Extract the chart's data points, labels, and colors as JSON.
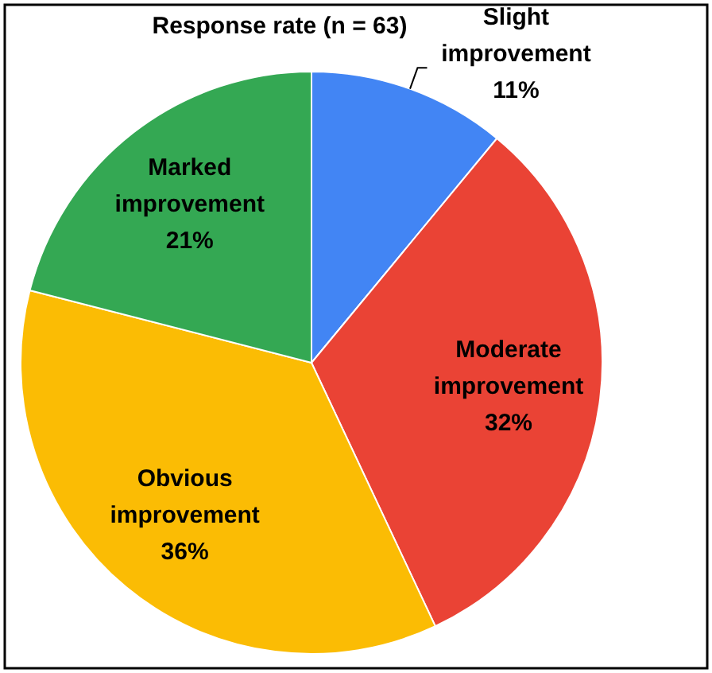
{
  "chart_data": {
    "type": "pie",
    "title": "Response rate (n = 63)",
    "categories": [
      "Slight improvement",
      "Moderate improvement",
      "Obvious improvement",
      "Marked improvement"
    ],
    "values": [
      11,
      32,
      36,
      21
    ],
    "colors": [
      "#4285f4",
      "#ea4335",
      "#fbbc04",
      "#34a853"
    ],
    "value_labels": [
      "11%",
      "32%",
      "36%",
      "21%"
    ]
  }
}
